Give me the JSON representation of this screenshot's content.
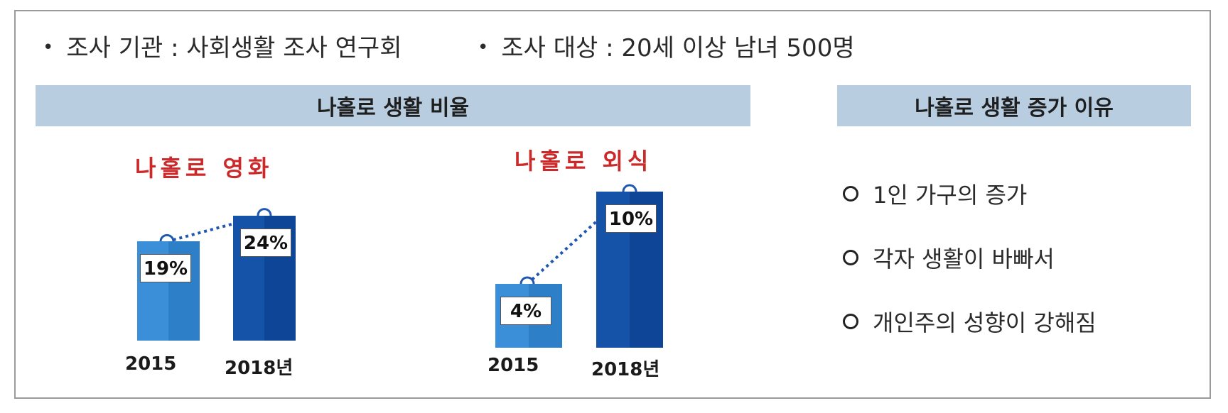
{
  "header_info": {
    "org": "조사 기관 : 사회생활 조사 연구회",
    "target": "조사 대상 : 20세 이상 남녀 500명"
  },
  "left_header": "나홀로 생활 비율",
  "right_header": "나홀로 생활 증가 이유",
  "reasons": [
    "1인 가구의 증가",
    "각자 생활이 바빠서",
    "개인주의 성향이 강해짐"
  ],
  "colors": {
    "bar_2015": "#3a8fd8",
    "bar_2018": "#1553a8",
    "connector": "#1f58b0",
    "title": "#cc2a2a",
    "header_bg": "#b8cde0"
  },
  "chart_data": [
    {
      "type": "bar",
      "title": "나홀로 영화",
      "categories": [
        "2015",
        "2018년"
      ],
      "values": [
        19,
        24
      ],
      "value_labels": [
        "19%",
        "24%"
      ],
      "unit": "%"
    },
    {
      "type": "bar",
      "title": "나홀로 외식",
      "categories": [
        "2015",
        "2018년"
      ],
      "values": [
        4,
        10
      ],
      "value_labels": [
        "4%",
        "10%"
      ],
      "unit": "%"
    }
  ]
}
